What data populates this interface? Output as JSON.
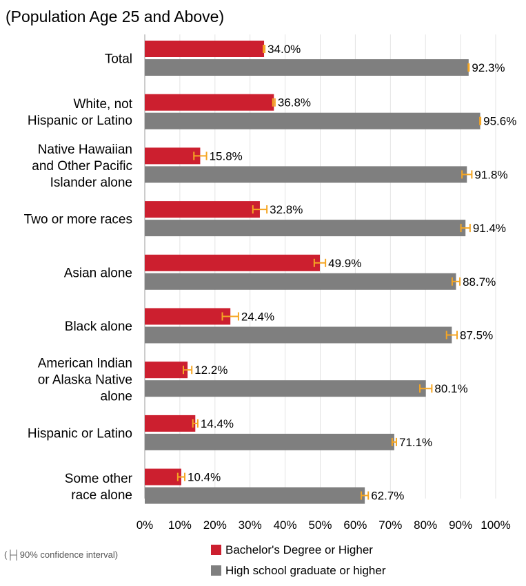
{
  "chart_data": {
    "type": "bar",
    "orientation": "horizontal",
    "title": "(Population Age 25 and Above)",
    "categories": [
      [
        "Total"
      ],
      [
        "White, not",
        "Hispanic or Latino"
      ],
      [
        "Native Hawaiian",
        "and Other Pacific",
        "Islander alone"
      ],
      [
        "Two or more races"
      ],
      [
        "Asian alone"
      ],
      [
        "Black alone"
      ],
      [
        "American Indian",
        "or Alaska Native",
        "alone"
      ],
      [
        "Hispanic or Latino"
      ],
      [
        "Some other",
        "race alone"
      ]
    ],
    "series": [
      {
        "name": "Bachelor's Degree or Higher",
        "color": "#cc1f2f",
        "values": [
          34.0,
          36.8,
          15.8,
          32.8,
          49.9,
          24.4,
          12.2,
          14.4,
          10.4
        ],
        "labels": [
          "34.0%",
          "36.8%",
          "15.8%",
          "32.8%",
          "49.9%",
          "24.4%",
          "12.2%",
          "14.4%",
          "10.4%"
        ],
        "ci_margin": [
          0.2,
          0.3,
          1.8,
          2.0,
          1.6,
          2.3,
          1.2,
          0.7,
          1.0
        ]
      },
      {
        "name": "High school graduate or higher",
        "color": "#7f7f7f",
        "values": [
          92.3,
          95.6,
          91.8,
          91.4,
          88.7,
          87.5,
          80.1,
          71.1,
          62.7
        ],
        "labels": [
          "92.3%",
          "95.6%",
          "91.8%",
          "91.4%",
          "88.7%",
          "87.5%",
          "80.1%",
          "71.1%",
          "62.7%"
        ],
        "ci_margin": [
          0.1,
          0.1,
          1.4,
          1.3,
          1.1,
          1.5,
          1.7,
          0.6,
          1.0
        ]
      }
    ],
    "ci_color": "#f5a623",
    "xlim": [
      0,
      100
    ],
    "xticks": [
      "0%",
      "10%",
      "20%",
      "30%",
      "40%",
      "50%",
      "60%",
      "70%",
      "80%",
      "90%",
      "100%"
    ],
    "grid": true,
    "legend_position": "bottom",
    "legend": [
      "Bachelor's Degree or Higher",
      "High school graduate or higher"
    ],
    "ci_note": "(├┤90% confidence interval)"
  }
}
